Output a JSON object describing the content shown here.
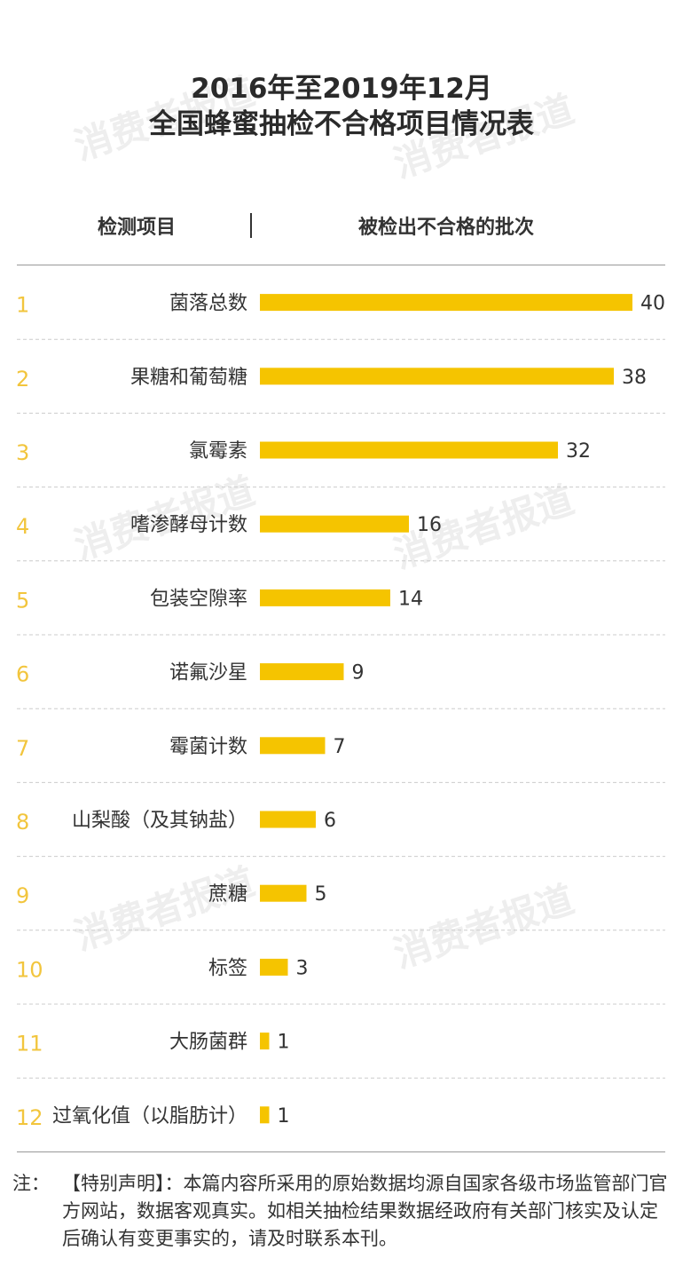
{
  "title": {
    "line1": "2016年至2019年12月",
    "line2": "全国蜂蜜抽检不合格项目情况表"
  },
  "header": {
    "item_label": "检测项目",
    "count_label": "被检出不合格的批次"
  },
  "watermark": "消费者报道",
  "colors": {
    "bar": "#f5c400",
    "rank": "#f2c53d",
    "text": "#333333"
  },
  "chart_data": {
    "type": "bar",
    "orientation": "horizontal",
    "categories": [
      "菌落总数",
      "果糖和葡萄糖",
      "氯霉素",
      "嗜渗酵母计数",
      "包装空隙率",
      "诺氟沙星",
      "霉菌计数",
      "山梨酸（及其钠盐）",
      "蔗糖",
      "标签",
      "大肠菌群",
      "过氧化值（以脂肪计）"
    ],
    "ranks": [
      "1",
      "2",
      "3",
      "4",
      "5",
      "6",
      "7",
      "8",
      "9",
      "10",
      "11",
      "12"
    ],
    "values": [
      40,
      38,
      32,
      16,
      14,
      9,
      7,
      6,
      5,
      3,
      1,
      1
    ],
    "xlim": [
      0,
      40
    ],
    "grid": false
  },
  "note": {
    "label": "注：",
    "text": "【特别声明】：本篇内容所采用的原始数据均源自国家各级市场监管部门官方网站，数据客观真实。如相关抽检结果数据经政府有关部门核实及认定后确认有变更事实的，请及时联系本刊。"
  }
}
